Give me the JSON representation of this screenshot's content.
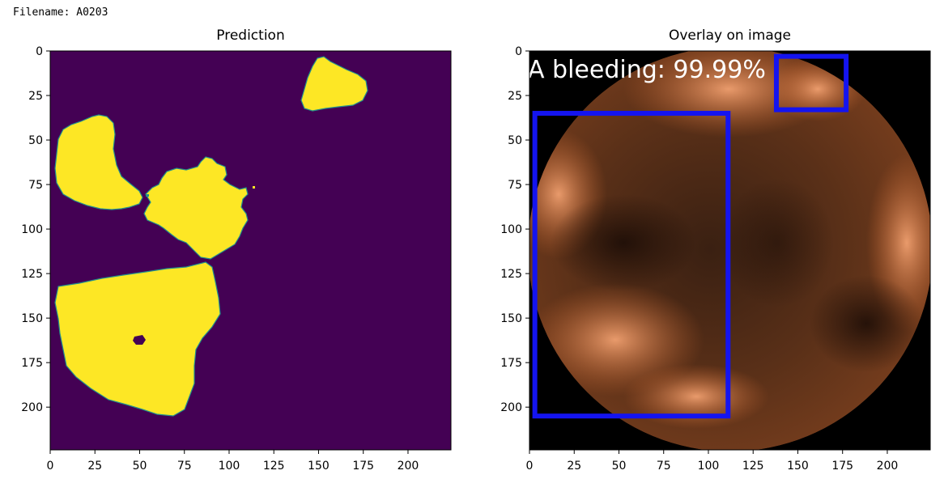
{
  "header": {
    "filename_label": "Filename: A0203"
  },
  "chart_data": [
    {
      "type": "heatmap",
      "title": "Prediction",
      "xlim": [
        0,
        224
      ],
      "ylim": [
        224,
        0
      ],
      "xticks": [
        0,
        25,
        50,
        75,
        100,
        125,
        150,
        175,
        200
      ],
      "yticks": [
        0,
        25,
        50,
        75,
        100,
        125,
        150,
        175,
        200
      ],
      "colormap": {
        "background": "#440154",
        "mask": "#fde725"
      },
      "mask_regions": [
        {
          "name": "top-right blob",
          "x_range": [
            140,
            178
          ],
          "y_range": [
            3,
            34
          ]
        },
        {
          "name": "left blob",
          "x_range": [
            2,
            54
          ],
          "y_range": [
            35,
            89
          ]
        },
        {
          "name": "center blob",
          "x_range": [
            52,
            112
          ],
          "y_range": [
            58,
            118
          ]
        },
        {
          "name": "bottom blob",
          "x_range": [
            2,
            94
          ],
          "y_range": [
            118,
            206
          ],
          "hole_center": [
            50,
            162
          ]
        }
      ]
    },
    {
      "type": "image",
      "title": "Overlay on image",
      "xlim": [
        0,
        224
      ],
      "ylim": [
        224,
        0
      ],
      "xticks": [
        0,
        25,
        50,
        75,
        100,
        125,
        150,
        175,
        200
      ],
      "yticks": [
        0,
        25,
        50,
        75,
        100,
        125,
        150,
        175,
        200
      ],
      "annotation_text": "A bleeding: 99.99%",
      "box_color": "#1414f0",
      "boxes": [
        {
          "x0": 3,
          "y0": 35,
          "x1": 111,
          "y1": 205
        },
        {
          "x0": 138,
          "y0": 3,
          "x1": 177,
          "y1": 33
        }
      ]
    }
  ]
}
